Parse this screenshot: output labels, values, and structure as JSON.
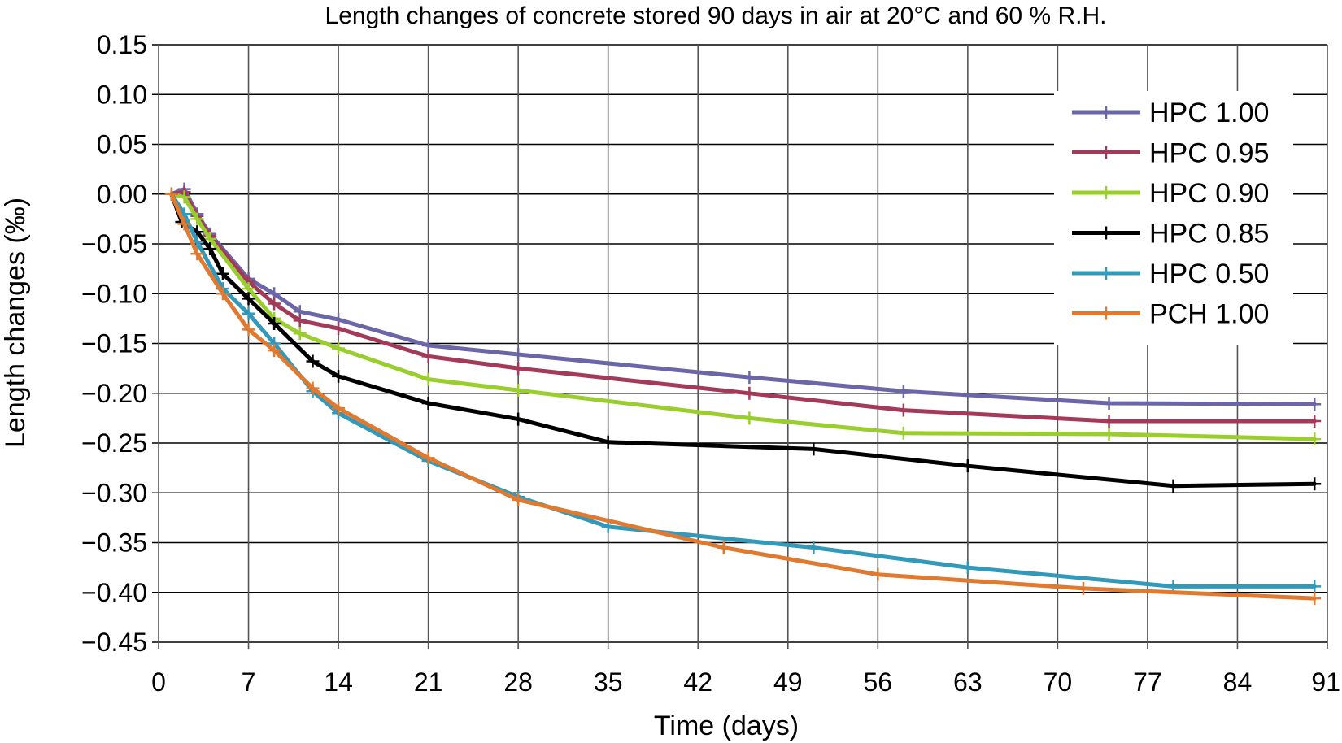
{
  "chart_data": {
    "type": "line",
    "title": "Length changes of concrete stored 90 days in air at 20°C and 60 % R.H.",
    "xlabel": "Time (days)",
    "ylabel": "Length changes (‰)",
    "xlim": [
      0,
      91
    ],
    "ylim": [
      -0.45,
      0.15
    ],
    "xticks": [
      0,
      7,
      14,
      21,
      28,
      35,
      42,
      49,
      56,
      63,
      70,
      77,
      84,
      91
    ],
    "yticks": [
      0.15,
      0.1,
      0.05,
      0.0,
      -0.05,
      -0.1,
      -0.15,
      -0.2,
      -0.25,
      -0.3,
      -0.35,
      -0.4,
      -0.45
    ],
    "ytick_labels": [
      "0.15",
      "0.10",
      "0.05",
      "0.00",
      "−0.05",
      "−0.10",
      "−0.15",
      "−0.20",
      "−0.25",
      "−0.30",
      "−0.35",
      "−0.40",
      "−0.45"
    ],
    "xtick_labels": [
      "0",
      "7",
      "14",
      "21",
      "28",
      "35",
      "42",
      "49",
      "56",
      "63",
      "70",
      "77",
      "84",
      "91"
    ],
    "grid": true,
    "legend_position": "top-right",
    "series": [
      {
        "name": "HPC 1.00",
        "color": "#6a66a8",
        "points": [
          [
            1,
            0
          ],
          [
            2,
            0.005
          ],
          [
            3,
            -0.02
          ],
          [
            4,
            -0.04
          ],
          [
            7,
            -0.085
          ],
          [
            9,
            -0.1
          ],
          [
            11,
            -0.118
          ],
          [
            14,
            -0.126
          ],
          [
            21,
            -0.152
          ],
          [
            28,
            -0.161
          ],
          [
            46,
            -0.184
          ],
          [
            58,
            -0.198
          ],
          [
            74,
            -0.21
          ],
          [
            90,
            -0.211
          ]
        ]
      },
      {
        "name": "HPC 0.95",
        "color": "#a33a5a",
        "points": [
          [
            1,
            0
          ],
          [
            2,
            0.002
          ],
          [
            3,
            -0.022
          ],
          [
            4,
            -0.042
          ],
          [
            7,
            -0.088
          ],
          [
            9,
            -0.11
          ],
          [
            11,
            -0.127
          ],
          [
            14,
            -0.135
          ],
          [
            21,
            -0.163
          ],
          [
            28,
            -0.175
          ],
          [
            46,
            -0.2
          ],
          [
            58,
            -0.217
          ],
          [
            74,
            -0.228
          ],
          [
            90,
            -0.228
          ]
        ]
      },
      {
        "name": "HPC 0.90",
        "color": "#9acd2e",
        "points": [
          [
            1,
            0
          ],
          [
            2,
            -0.003
          ],
          [
            3,
            -0.025
          ],
          [
            4,
            -0.045
          ],
          [
            7,
            -0.095
          ],
          [
            9,
            -0.125
          ],
          [
            11,
            -0.14
          ],
          [
            14,
            -0.155
          ],
          [
            21,
            -0.186
          ],
          [
            28,
            -0.197
          ],
          [
            46,
            -0.225
          ],
          [
            58,
            -0.24
          ],
          [
            74,
            -0.241
          ],
          [
            90,
            -0.246
          ]
        ]
      },
      {
        "name": "HPC 0.85",
        "color": "#000000",
        "points": [
          [
            1,
            0
          ],
          [
            1.8,
            -0.028
          ],
          [
            3,
            -0.038
          ],
          [
            4,
            -0.055
          ],
          [
            5,
            -0.08
          ],
          [
            7,
            -0.105
          ],
          [
            9,
            -0.13
          ],
          [
            12,
            -0.168
          ],
          [
            14,
            -0.183
          ],
          [
            21,
            -0.21
          ],
          [
            28,
            -0.226
          ],
          [
            35,
            -0.249
          ],
          [
            51,
            -0.256
          ],
          [
            63,
            -0.273
          ],
          [
            79,
            -0.293
          ],
          [
            90,
            -0.291
          ]
        ]
      },
      {
        "name": "HPC 0.50",
        "color": "#3399bb",
        "points": [
          [
            1,
            0
          ],
          [
            2,
            -0.02
          ],
          [
            3,
            -0.048
          ],
          [
            5,
            -0.095
          ],
          [
            7,
            -0.12
          ],
          [
            9,
            -0.15
          ],
          [
            12,
            -0.198
          ],
          [
            14,
            -0.22
          ],
          [
            21,
            -0.268
          ],
          [
            28,
            -0.304
          ],
          [
            35,
            -0.334
          ],
          [
            51,
            -0.355
          ],
          [
            63,
            -0.375
          ],
          [
            79,
            -0.394
          ],
          [
            90,
            -0.394
          ]
        ]
      },
      {
        "name": "PCH 1.00",
        "color": "#e07a30",
        "points": [
          [
            1,
            0
          ],
          [
            2,
            -0.03
          ],
          [
            3,
            -0.06
          ],
          [
            5,
            -0.1
          ],
          [
            7,
            -0.136
          ],
          [
            9,
            -0.157
          ],
          [
            12,
            -0.195
          ],
          [
            14,
            -0.215
          ],
          [
            21,
            -0.265
          ],
          [
            28,
            -0.307
          ],
          [
            44,
            -0.355
          ],
          [
            56,
            -0.382
          ],
          [
            72,
            -0.396
          ],
          [
            90,
            -0.406
          ]
        ]
      }
    ]
  }
}
